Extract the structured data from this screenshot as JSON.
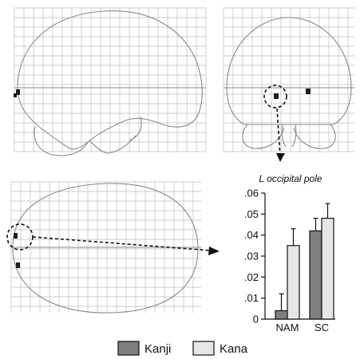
{
  "chart_data": {
    "type": "bar",
    "title": "L occipital pole",
    "categories": [
      "NAM",
      "SC"
    ],
    "series": [
      {
        "name": "Kanji",
        "color": "#7f7f7f",
        "values": [
          0.004,
          0.042
        ],
        "errors": [
          0.008,
          0.006
        ]
      },
      {
        "name": "Kana",
        "color": "#e6e6e6",
        "values": [
          0.035,
          0.048
        ],
        "errors": [
          0.008,
          0.007
        ]
      }
    ],
    "ylim": [
      0,
      0.06
    ],
    "yticks": [
      0,
      0.01,
      0.02,
      0.03,
      0.04,
      0.05,
      0.06
    ],
    "ytick_labels": [
      "0",
      ".01",
      ".02",
      ".03",
      ".04",
      ".05",
      ".06"
    ],
    "legend_placement": "bottom"
  },
  "legend": [
    {
      "label": "Kanji",
      "color": "#7f7f7f"
    },
    {
      "label": "Kana",
      "color": "#e6e6e6"
    }
  ]
}
